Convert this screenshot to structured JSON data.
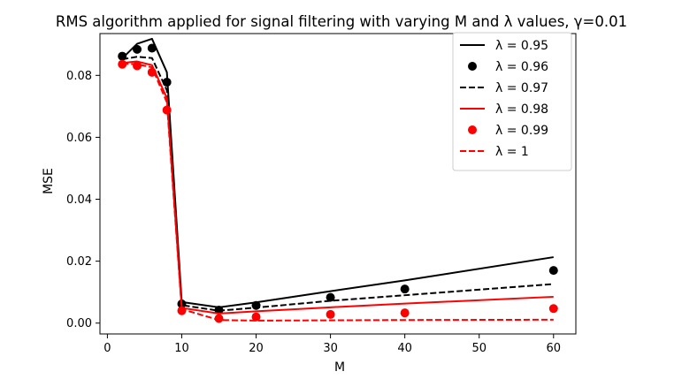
{
  "chart_data": {
    "type": "line",
    "title": "RMS algorithm applied for signal filtering with varying M and λ values, γ=0.01",
    "xlabel": "M",
    "ylabel": "MSE",
    "xlim": [
      -1,
      63
    ],
    "ylim": [
      -0.0035,
      0.0935
    ],
    "xticks": [
      0,
      10,
      20,
      30,
      40,
      50,
      60
    ],
    "yticks": [
      0.0,
      0.02,
      0.04,
      0.06,
      0.08
    ],
    "ytick_labels": [
      "0.00",
      "0.02",
      "0.04",
      "0.06",
      "0.08"
    ],
    "grid": false,
    "legend_position": "top-right",
    "x": [
      2,
      4,
      6,
      8,
      10,
      15,
      20,
      30,
      40,
      60
    ],
    "series": [
      {
        "name": "λ = 0.95",
        "style": "solid",
        "marker": "none",
        "color": "#000000",
        "values": [
          0.0855,
          0.0902,
          0.0918,
          0.081,
          0.0068,
          0.0051,
          0.0067,
          0.0103,
          0.0138,
          0.0213
        ]
      },
      {
        "name": "λ = 0.96",
        "style": "none",
        "marker": "circle",
        "color": "#000000",
        "values": [
          0.0862,
          0.0884,
          0.0888,
          0.0778,
          0.0062,
          0.0042,
          0.0057,
          0.0083,
          0.011,
          0.017
        ]
      },
      {
        "name": "λ = 0.97",
        "style": "dashed",
        "marker": "none",
        "color": "#000000",
        "values": [
          0.0852,
          0.086,
          0.0856,
          0.0752,
          0.0058,
          0.004,
          0.005,
          0.0072,
          0.009,
          0.0126
        ]
      },
      {
        "name": "λ = 0.98",
        "style": "solid",
        "marker": "none",
        "color": "#ff0000",
        "values": [
          0.084,
          0.0845,
          0.0833,
          0.0727,
          0.0049,
          0.0031,
          0.0038,
          0.0051,
          0.0063,
          0.0085
        ]
      },
      {
        "name": "λ = 0.99",
        "style": "none",
        "marker": "circle",
        "color": "#ff0000",
        "values": [
          0.0836,
          0.0831,
          0.081,
          0.0688,
          0.004,
          0.0015,
          0.002,
          0.0028,
          0.0033,
          0.0047
        ]
      },
      {
        "name": "λ = 1",
        "style": "dashed",
        "marker": "none",
        "color": "#ff0000",
        "values": [
          0.0838,
          0.0836,
          0.0826,
          0.0713,
          0.0045,
          0.001,
          0.0008,
          0.0009,
          0.001,
          0.0011
        ]
      }
    ]
  }
}
